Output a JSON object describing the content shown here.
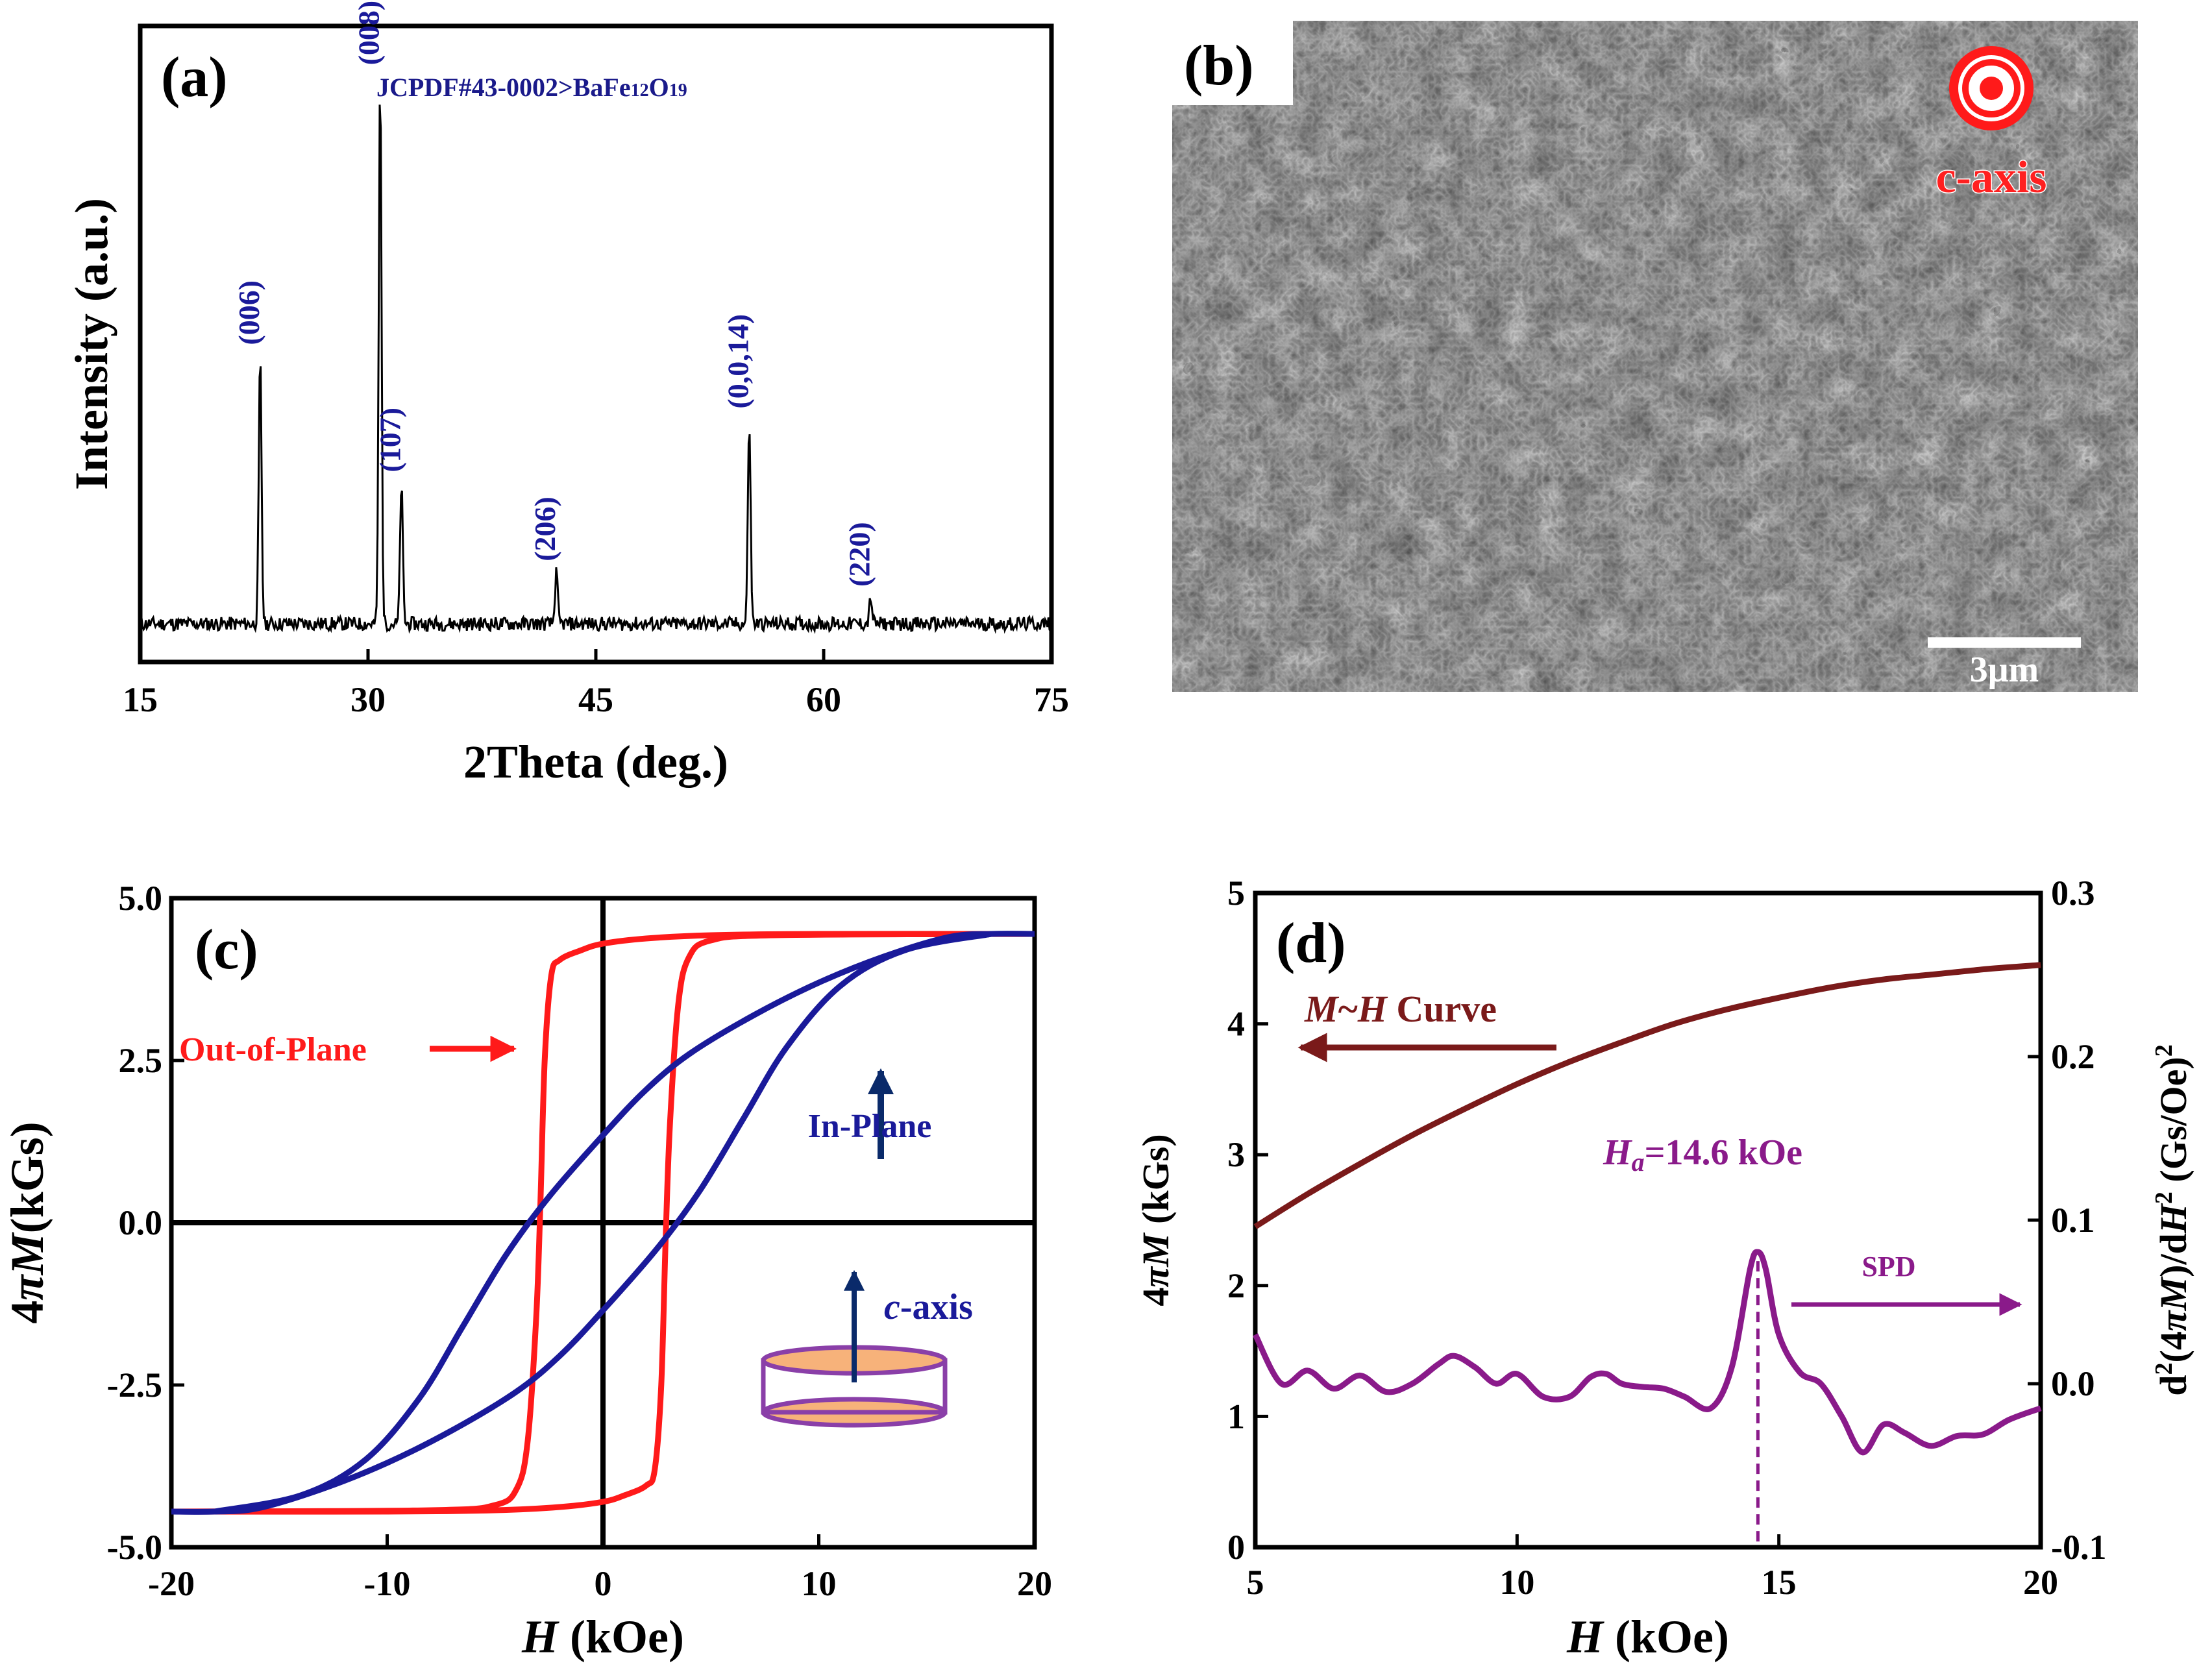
{
  "chart_data": [
    {
      "id": "a",
      "type": "line",
      "panel_label": "(a)",
      "title": "JCPDF#43-0002>BaFe",
      "title_sub1": "12",
      "title_mid": "O",
      "title_sub2": "19",
      "xlabel": "2Theta (deg.)",
      "ylabel": "Intensity (a.u.)",
      "xlim": [
        15,
        75
      ],
      "xticks": [
        "15",
        "30",
        "45",
        "60",
        "75"
      ],
      "ylim": [
        0,
        1
      ],
      "baseline": 0.06,
      "peaks": [
        {
          "label": "(006)",
          "x": 22.9,
          "height": 0.42
        },
        {
          "label": "(008)",
          "x": 30.8,
          "height": 0.86
        },
        {
          "label": "(107)",
          "x": 32.2,
          "height": 0.22
        },
        {
          "label": "(206)",
          "x": 42.4,
          "height": 0.08
        },
        {
          "label": "(0,0,14)",
          "x": 55.1,
          "height": 0.32
        },
        {
          "label": "(220)",
          "x": 63.1,
          "height": 0.04
        }
      ]
    },
    {
      "id": "b",
      "type": "image",
      "panel_label": "(b)",
      "axis_label": "c-axis",
      "scale_bar": "3μm"
    },
    {
      "id": "c",
      "type": "line",
      "panel_label": "(c)",
      "xlabel_italic": "H",
      "xlabel_rest": " (kOe)",
      "ylabel_pre": "4",
      "ylabel_pi": "π",
      "ylabel_M": "M",
      "ylabel_rest": "(kGs)",
      "xlim": [
        -20,
        20
      ],
      "ylim": [
        -5,
        5
      ],
      "xticks": [
        "-20",
        "-10",
        "0",
        "10",
        "20"
      ],
      "yticks": [
        "-5.0",
        "-2.5",
        "0.0",
        "2.5",
        "5.0"
      ],
      "legend_out_of_plane": "Out-of-Plane",
      "legend_in_plane": "In-Plane",
      "inset_axis_italic": "c",
      "inset_axis_rest": "-axis",
      "colors": {
        "out_of_plane": "#ff1a1a",
        "in_plane": "#1a1a9a",
        "inset": "#8a3fa8",
        "inset_fill": "#f7b27a",
        "arrow": "#0a2a6a"
      },
      "series": [
        {
          "name": "Out-of-Plane upper branch",
          "points": [
            [
              -20,
              -4.45
            ],
            [
              -8,
              -4.43
            ],
            [
              -5,
              -4.35
            ],
            [
              -4,
              -4.1
            ],
            [
              -3.5,
              -3.4
            ],
            [
              -3.1,
              -1.5
            ],
            [
              -2.9,
              0.3
            ],
            [
              -2.7,
              2.5
            ],
            [
              -2.4,
              3.8
            ],
            [
              -2,
              4.05
            ],
            [
              -1,
              4.2
            ],
            [
              0,
              4.3
            ],
            [
              2,
              4.38
            ],
            [
              5,
              4.43
            ],
            [
              10,
              4.45
            ],
            [
              20,
              4.45
            ]
          ]
        },
        {
          "name": "Out-of-Plane lower branch",
          "points": [
            [
              20,
              4.45
            ],
            [
              8,
              4.43
            ],
            [
              5,
              4.35
            ],
            [
              4,
              4.1
            ],
            [
              3.5,
              3.4
            ],
            [
              3.1,
              1.5
            ],
            [
              2.9,
              -0.3
            ],
            [
              2.7,
              -2.5
            ],
            [
              2.4,
              -3.8
            ],
            [
              2,
              -4.05
            ],
            [
              1,
              -4.2
            ],
            [
              0,
              -4.3
            ],
            [
              -2,
              -4.38
            ],
            [
              -5,
              -4.43
            ],
            [
              -10,
              -4.45
            ],
            [
              -20,
              -4.45
            ]
          ]
        },
        {
          "name": "In-Plane upper branch",
          "points": [
            [
              -18,
              -4.45
            ],
            [
              -14,
              -4.2
            ],
            [
              -11,
              -3.65
            ],
            [
              -8.5,
              -2.7
            ],
            [
              -6.5,
              -1.6
            ],
            [
              -4.5,
              -0.5
            ],
            [
              -2.5,
              0.4
            ],
            [
              0,
              1.35
            ],
            [
              2,
              2.05
            ],
            [
              4,
              2.6
            ],
            [
              7,
              3.2
            ],
            [
              10,
              3.7
            ],
            [
              13,
              4.1
            ],
            [
              16,
              4.4
            ],
            [
              18,
              4.45
            ],
            [
              20,
              4.45
            ]
          ]
        },
        {
          "name": "In-Plane lower branch",
          "points": [
            [
              18,
              4.45
            ],
            [
              14,
              4.2
            ],
            [
              11,
              3.65
            ],
            [
              8.5,
              2.7
            ],
            [
              6.5,
              1.6
            ],
            [
              4.5,
              0.5
            ],
            [
              2.5,
              -0.4
            ],
            [
              0,
              -1.35
            ],
            [
              -2,
              -2.05
            ],
            [
              -4,
              -2.6
            ],
            [
              -7,
              -3.2
            ],
            [
              -10,
              -3.7
            ],
            [
              -13,
              -4.1
            ],
            [
              -16,
              -4.4
            ],
            [
              -18,
              -4.45
            ],
            [
              -20,
              -4.45
            ]
          ]
        }
      ]
    },
    {
      "id": "d",
      "type": "line",
      "panel_label": "(d)",
      "xlabel_italic": "H",
      "xlabel_rest": " (kOe)",
      "ylabel_left_pre": "4",
      "ylabel_left_pi": "π",
      "ylabel_left_M": "M",
      "ylabel_left_rest": " (kGs)",
      "ylabel_right_a": "d",
      "ylabel_right_sup": "2",
      "ylabel_right_b": "(4",
      "ylabel_right_pi": "π",
      "ylabel_right_M": "M",
      "ylabel_right_c": ")/d",
      "ylabel_right_H": "H",
      "ylabel_right_sup2": "2",
      "ylabel_right_d": " (Gs/Oe)",
      "ylabel_right_sup3": "2",
      "xlim": [
        5,
        20
      ],
      "ylim_left": [
        0,
        5
      ],
      "ylim_right": [
        -0.1,
        0.3
      ],
      "xticks": [
        "5",
        "10",
        "15",
        "20"
      ],
      "yticks_left": [
        "0",
        "1",
        "2",
        "3",
        "4",
        "5"
      ],
      "yticks_right": [
        "-0.1",
        "0.0",
        "0.1",
        "0.2",
        "0.3"
      ],
      "legend_mh_M": "M",
      "legend_mh_tilde": "~",
      "legend_mh_H": "H",
      "legend_mh_rest": " Curve",
      "annotation_Ha_H": "H",
      "annotation_Ha_sub": "a",
      "annotation_Ha_rest": "=14.6 kOe",
      "legend_spd": "SPD",
      "Ha": 14.6,
      "colors": {
        "mh": "#7a1a1a",
        "spd": "#8a1a8a"
      },
      "series": [
        {
          "name": "M~H Curve",
          "axis": "left",
          "points": [
            [
              5,
              2.45
            ],
            [
              6,
              2.7
            ],
            [
              7,
              2.93
            ],
            [
              8,
              3.15
            ],
            [
              9,
              3.35
            ],
            [
              10,
              3.54
            ],
            [
              11,
              3.71
            ],
            [
              12,
              3.86
            ],
            [
              13,
              4.0
            ],
            [
              14,
              4.11
            ],
            [
              15,
              4.2
            ],
            [
              16,
              4.28
            ],
            [
              17,
              4.34
            ],
            [
              18,
              4.38
            ],
            [
              19,
              4.42
            ],
            [
              20,
              4.45
            ]
          ]
        },
        {
          "name": "SPD",
          "axis": "right",
          "points": [
            [
              5,
              0.03
            ],
            [
              5.5,
              0.0
            ],
            [
              6,
              0.008
            ],
            [
              6.5,
              -0.003
            ],
            [
              7,
              0.005
            ],
            [
              7.5,
              -0.005
            ],
            [
              8,
              0.0
            ],
            [
              8.5,
              0.012
            ],
            [
              8.8,
              0.017
            ],
            [
              9.2,
              0.01
            ],
            [
              9.6,
              0.0
            ],
            [
              10,
              0.006
            ],
            [
              10.5,
              -0.008
            ],
            [
              11,
              -0.008
            ],
            [
              11.4,
              0.004
            ],
            [
              11.7,
              0.006
            ],
            [
              12,
              0.0
            ],
            [
              12.4,
              -0.002
            ],
            [
              12.8,
              -0.003
            ],
            [
              13.2,
              -0.008
            ],
            [
              13.7,
              -0.015
            ],
            [
              14.1,
              0.01
            ],
            [
              14.45,
              0.07
            ],
            [
              14.6,
              0.0805
            ],
            [
              14.75,
              0.07
            ],
            [
              15,
              0.03
            ],
            [
              15.4,
              0.007
            ],
            [
              15.8,
              0.0
            ],
            [
              16.2,
              -0.02
            ],
            [
              16.6,
              -0.042
            ],
            [
              17,
              -0.025
            ],
            [
              17.4,
              -0.03
            ],
            [
              17.9,
              -0.038
            ],
            [
              18.4,
              -0.032
            ],
            [
              18.9,
              -0.031
            ],
            [
              19.4,
              -0.022
            ],
            [
              20,
              -0.015
            ]
          ]
        }
      ]
    }
  ]
}
